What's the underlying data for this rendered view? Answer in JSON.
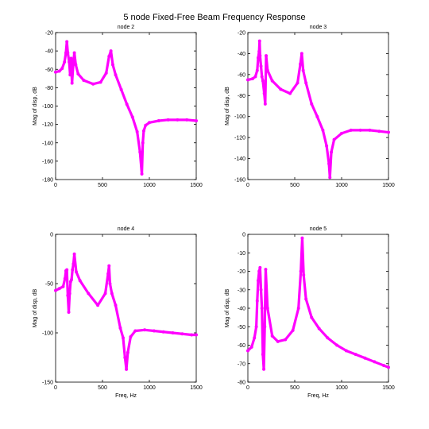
{
  "figure": {
    "title": "5 node Fixed-Free Beam Frequency Response",
    "line_color": "#ff00ff"
  },
  "chart_data": [
    {
      "type": "line",
      "title": "node 2",
      "xlabel": "",
      "ylabel": "Mag of disp, dB",
      "xlim": [
        0,
        1500
      ],
      "ylim": [
        -180,
        -20
      ],
      "xticks": [
        0,
        500,
        1000,
        1500
      ],
      "yticks": [
        -20,
        -40,
        -60,
        -80,
        -100,
        -120,
        -140,
        -160,
        -180
      ],
      "series": [
        {
          "x": [
            0,
            40,
            70,
            95,
            110,
            120,
            130,
            145,
            155,
            165,
            175,
            190,
            200,
            215,
            240,
            300,
            400,
            480,
            540,
            570,
            590,
            610,
            640,
            700,
            760,
            820,
            870,
            900,
            920,
            930,
            940,
            960,
            1000,
            1100,
            1200,
            1300,
            1400,
            1500
          ],
          "y": [
            -63,
            -62,
            -59,
            -52,
            -42,
            -30,
            -42,
            -52,
            -66,
            -48,
            -75,
            -52,
            -42,
            -55,
            -65,
            -72,
            -76,
            -74,
            -64,
            -46,
            -40,
            -55,
            -66,
            -82,
            -98,
            -112,
            -128,
            -150,
            -174,
            -140,
            -127,
            -121,
            -118,
            -116,
            -115,
            -115,
            -115,
            -116
          ]
        }
      ]
    },
    {
      "type": "line",
      "title": "node 3",
      "xlabel": "",
      "ylabel": "Mag of disp, dB",
      "xlim": [
        0,
        1500
      ],
      "ylim": [
        -160,
        -20
      ],
      "xticks": [
        0,
        500,
        1000,
        1500
      ],
      "yticks": [
        -20,
        -40,
        -60,
        -80,
        -100,
        -120,
        -140,
        -160
      ],
      "series": [
        {
          "x": [
            0,
            50,
            80,
            100,
            110,
            120,
            125,
            130,
            140,
            150,
            160,
            175,
            185,
            195,
            210,
            260,
            350,
            450,
            530,
            560,
            575,
            590,
            620,
            680,
            740,
            800,
            840,
            865,
            875,
            890,
            920,
            1000,
            1100,
            1200,
            1300,
            1400,
            1500
          ],
          "y": [
            -65,
            -64,
            -62,
            -56,
            -44,
            -38,
            -28,
            -42,
            -52,
            -62,
            -66,
            -78,
            -88,
            -42,
            -56,
            -66,
            -74,
            -78,
            -68,
            -50,
            -40,
            -56,
            -68,
            -88,
            -100,
            -113,
            -128,
            -145,
            -158,
            -134,
            -122,
            -116,
            -113,
            -113,
            -113,
            -114,
            -115
          ]
        }
      ]
    },
    {
      "type": "line",
      "title": "node 4",
      "xlabel": "Freq, Hz",
      "ylabel": "Mag of disp, dB",
      "xlim": [
        0,
        1500
      ],
      "ylim": [
        -150,
        0
      ],
      "xticks": [
        0,
        500,
        1000,
        1500
      ],
      "yticks": [
        0,
        -50,
        -100,
        -150
      ],
      "series": [
        {
          "x": [
            0,
            40,
            80,
            100,
            110,
            120,
            130,
            140,
            150,
            160,
            170,
            180,
            190,
            200,
            220,
            260,
            350,
            450,
            530,
            560,
            570,
            580,
            600,
            640,
            690,
            720,
            740,
            755,
            770,
            800,
            850,
            950,
            1050,
            1150,
            1250,
            1350,
            1450,
            1500
          ],
          "y": [
            -57,
            -55,
            -53,
            -45,
            -37,
            -36,
            -62,
            -79,
            -60,
            -48,
            -46,
            -36,
            -30,
            -20,
            -38,
            -47,
            -60,
            -72,
            -60,
            -40,
            -32,
            -50,
            -60,
            -72,
            -95,
            -105,
            -125,
            -137,
            -120,
            -104,
            -98,
            -97,
            -98,
            -99,
            -100,
            -101,
            -102,
            -102
          ]
        }
      ]
    },
    {
      "type": "line",
      "title": "node 5",
      "xlabel": "Freq, Hz",
      "ylabel": "Mag of disp, dB",
      "xlim": [
        0,
        1500
      ],
      "ylim": [
        -80,
        0
      ],
      "xticks": [
        0,
        500,
        1000,
        1500
      ],
      "yticks": [
        0,
        -10,
        -20,
        -30,
        -40,
        -50,
        -60,
        -70,
        -80
      ],
      "series": [
        {
          "x": [
            0,
            40,
            70,
            90,
            100,
            110,
            120,
            130,
            140,
            150,
            160,
            170,
            180,
            190,
            210,
            260,
            320,
            400,
            480,
            540,
            565,
            580,
            595,
            620,
            680,
            760,
            850,
            950,
            1050,
            1150,
            1250,
            1350,
            1450,
            1500
          ],
          "y": [
            -63,
            -61,
            -56,
            -50,
            -36,
            -25,
            -20,
            -18,
            -30,
            -40,
            -65,
            -73,
            -50,
            -19,
            -40,
            -55,
            -58,
            -57,
            -52,
            -40,
            -20,
            -2,
            -22,
            -35,
            -45,
            -51,
            -56,
            -60,
            -63,
            -65,
            -67,
            -69,
            -71,
            -72
          ]
        }
      ]
    }
  ]
}
